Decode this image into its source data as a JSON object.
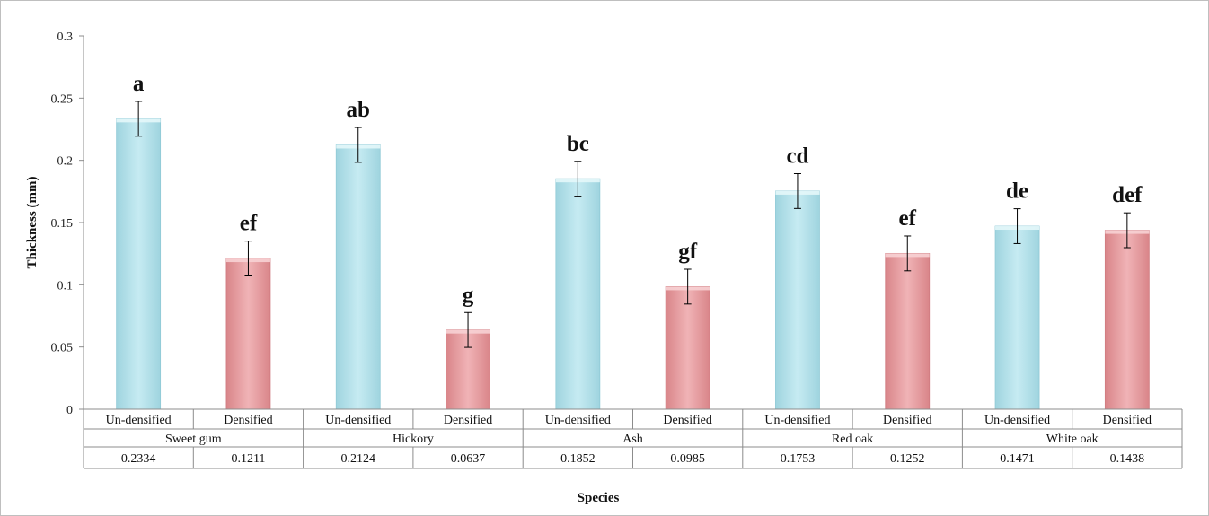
{
  "chart_data": {
    "type": "bar",
    "xlabel": "Species",
    "ylabel": "Thickness (mm)",
    "ylim": [
      0,
      0.3
    ],
    "yticks": [
      "0",
      "0.05",
      "0.1",
      "0.15",
      "0.2",
      "0.25",
      "0.3"
    ],
    "grid": false,
    "treatments": [
      "Un-densified",
      "Densified"
    ],
    "groups": [
      "Sweet gum",
      "Hickory",
      "Ash",
      "Red oak",
      "White oak"
    ],
    "bars": [
      {
        "group": "Sweet gum",
        "treatment": "Un-densified",
        "value": 0.2334,
        "label": "0.2334",
        "error": 0.014,
        "letter": "a",
        "color": "#b7e3ec"
      },
      {
        "group": "Sweet gum",
        "treatment": "Densified",
        "value": 0.1211,
        "label": "0.1211",
        "error": 0.014,
        "letter": "ef",
        "color": "#e9a3a6"
      },
      {
        "group": "Hickory",
        "treatment": "Un-densified",
        "value": 0.2124,
        "label": "0.2124",
        "error": 0.014,
        "letter": "ab",
        "color": "#b7e3ec"
      },
      {
        "group": "Hickory",
        "treatment": "Densified",
        "value": 0.0637,
        "label": "0.0637",
        "error": 0.014,
        "letter": "g",
        "color": "#e9a3a6"
      },
      {
        "group": "Ash",
        "treatment": "Un-densified",
        "value": 0.1852,
        "label": "0.1852",
        "error": 0.014,
        "letter": "bc",
        "color": "#b7e3ec"
      },
      {
        "group": "Ash",
        "treatment": "Densified",
        "value": 0.0985,
        "label": "0.0985",
        "error": 0.014,
        "letter": "gf",
        "color": "#e9a3a6"
      },
      {
        "group": "Red oak",
        "treatment": "Un-densified",
        "value": 0.1753,
        "label": "0.1753",
        "error": 0.014,
        "letter": "cd",
        "color": "#b7e3ec"
      },
      {
        "group": "Red oak",
        "treatment": "Densified",
        "value": 0.1252,
        "label": "0.1252",
        "error": 0.014,
        "letter": "ef",
        "color": "#e9a3a6"
      },
      {
        "group": "White oak",
        "treatment": "Un-densified",
        "value": 0.1471,
        "label": "0.1471",
        "error": 0.014,
        "letter": "de",
        "color": "#b7e3ec"
      },
      {
        "group": "White oak",
        "treatment": "Densified",
        "value": 0.1438,
        "label": "0.1438",
        "error": 0.014,
        "letter": "def",
        "color": "#e9a3a6"
      }
    ]
  }
}
